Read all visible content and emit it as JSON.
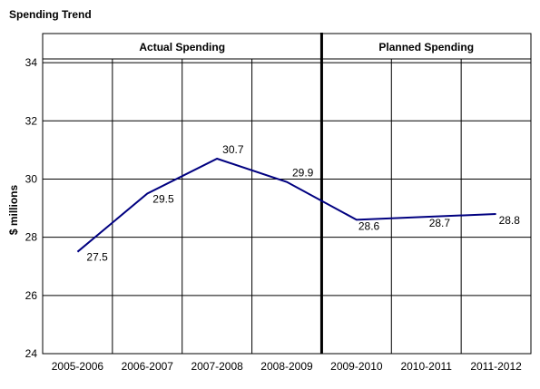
{
  "chart_data": {
    "type": "line",
    "title": "Spending Trend",
    "ylabel": "$ millions",
    "xlabel": "",
    "categories": [
      "2005-2006",
      "2006-2007",
      "2007-2008",
      "2008-2009",
      "2009-2010",
      "2010-2011",
      "2011-2012"
    ],
    "series": [
      {
        "values": [
          27.5,
          29.5,
          30.7,
          29.9,
          28.6,
          28.7,
          28.8
        ],
        "color": "#000080"
      }
    ],
    "data_labels": [
      "27.5",
      "29.5",
      "30.7",
      "29.9",
      "28.6",
      "28.7",
      "28.8"
    ],
    "ylim": [
      24,
      35
    ],
    "yticks": [
      24,
      26,
      28,
      30,
      32,
      34
    ],
    "grid": true,
    "legend": "none",
    "sections": [
      {
        "label": "Actual Spending",
        "categories": [
          "2005-2006",
          "2006-2007",
          "2007-2008",
          "2008-2009"
        ]
      },
      {
        "label": "Planned Spending",
        "categories": [
          "2009-2010",
          "2010-2011",
          "2011-2012"
        ]
      }
    ],
    "divider_after_category": "2008-2009"
  }
}
